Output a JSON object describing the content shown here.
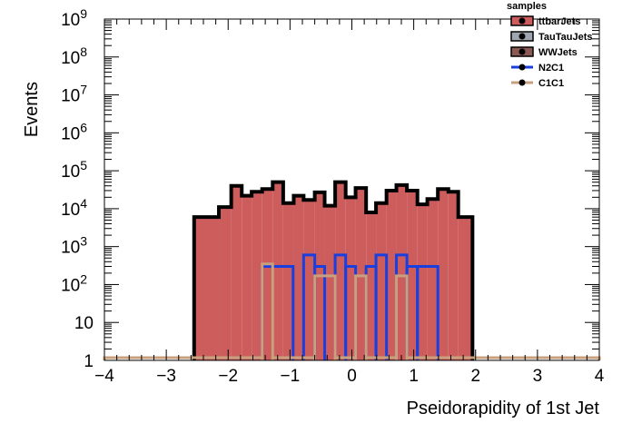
{
  "chart_data": {
    "type": "histogram",
    "title": "",
    "xlabel": "Pseidorapidity of 1st Jet",
    "ylabel": "Events",
    "xlim": [
      -4,
      4
    ],
    "ylim": [
      1,
      1000000000
    ],
    "yscale": "log",
    "grid": false,
    "legend_position": "top-right",
    "legend_title": "samples",
    "x_ticks": [
      {
        "value": -4,
        "label": "−4"
      },
      {
        "value": -3,
        "label": "−3"
      },
      {
        "value": -2,
        "label": "−2"
      },
      {
        "value": -1,
        "label": "−1"
      },
      {
        "value": 0,
        "label": "0"
      },
      {
        "value": 1,
        "label": "1"
      },
      {
        "value": 2,
        "label": "2"
      },
      {
        "value": 3,
        "label": "3"
      },
      {
        "value": 4,
        "label": "4"
      }
    ],
    "y_ticks": [
      {
        "value": 1,
        "base": "1",
        "exp": ""
      },
      {
        "value": 10,
        "base": "10",
        "exp": ""
      },
      {
        "value": 100,
        "base": "10",
        "exp": "2"
      },
      {
        "value": 1000,
        "base": "10",
        "exp": "3"
      },
      {
        "value": 10000,
        "base": "10",
        "exp": "4"
      },
      {
        "value": 100000,
        "base": "10",
        "exp": "5"
      },
      {
        "value": 1000000,
        "base": "10",
        "exp": "6"
      },
      {
        "value": 10000000,
        "base": "10",
        "exp": "7"
      },
      {
        "value": 100000000,
        "base": "10",
        "exp": "8"
      },
      {
        "value": 1000000000,
        "base": "10",
        "exp": "9"
      }
    ],
    "bin_edges": [
      -4.0,
      -3.8,
      -3.6,
      -3.4,
      -3.2,
      -3.0,
      -2.8,
      -2.6,
      -2.4,
      -2.2,
      -2.0,
      -1.8,
      -1.6,
      -1.4,
      -1.2,
      -1.0,
      -0.8,
      -0.6,
      -0.4,
      -0.2,
      0.0,
      0.2,
      0.4,
      0.6,
      0.8,
      1.0,
      1.2,
      1.4,
      1.6,
      1.8,
      2.0,
      2.2,
      2.4,
      2.6,
      2.8,
      3.0,
      3.2,
      3.4,
      3.6,
      3.8,
      4.0
    ],
    "series": [
      {
        "name": "ttbarJets",
        "style": "filled",
        "color": "#cd5c5c",
        "line_color": "#000000",
        "bins": [
          {
            "lo": -2.55,
            "hi": -2.15,
            "v": 6000
          },
          {
            "lo": -2.15,
            "hi": -1.95,
            "v": 11000
          },
          {
            "lo": -1.95,
            "hi": -1.78,
            "v": 40000
          },
          {
            "lo": -1.78,
            "hi": -1.62,
            "v": 22000
          },
          {
            "lo": -1.62,
            "hi": -1.45,
            "v": 28000
          },
          {
            "lo": -1.45,
            "hi": -1.28,
            "v": 33000
          },
          {
            "lo": -1.28,
            "hi": -1.11,
            "v": 50000
          },
          {
            "lo": -1.11,
            "hi": -0.94,
            "v": 14000
          },
          {
            "lo": -0.94,
            "hi": -0.78,
            "v": 22000
          },
          {
            "lo": -0.78,
            "hi": -0.6,
            "v": 17000
          },
          {
            "lo": -0.6,
            "hi": -0.44,
            "v": 27000
          },
          {
            "lo": -0.44,
            "hi": -0.27,
            "v": 12000
          },
          {
            "lo": -0.27,
            "hi": -0.1,
            "v": 50000
          },
          {
            "lo": -0.1,
            "hi": 0.06,
            "v": 20000
          },
          {
            "lo": 0.06,
            "hi": 0.23,
            "v": 35000
          },
          {
            "lo": 0.23,
            "hi": 0.39,
            "v": 8000
          },
          {
            "lo": 0.39,
            "hi": 0.56,
            "v": 14000
          },
          {
            "lo": 0.56,
            "hi": 0.72,
            "v": 30000
          },
          {
            "lo": 0.72,
            "hi": 0.89,
            "v": 42000
          },
          {
            "lo": 0.89,
            "hi": 1.06,
            "v": 30000
          },
          {
            "lo": 1.06,
            "hi": 1.22,
            "v": 13000
          },
          {
            "lo": 1.22,
            "hi": 1.39,
            "v": 18000
          },
          {
            "lo": 1.39,
            "hi": 1.56,
            "v": 33000
          },
          {
            "lo": 1.56,
            "hi": 1.72,
            "v": 28000
          },
          {
            "lo": 1.72,
            "hi": 1.95,
            "v": 6000
          }
        ]
      },
      {
        "name": "TauTauJets",
        "style": "filled",
        "color": "#9fa6b0",
        "line_color": "#000000",
        "bins": []
      },
      {
        "name": "WWJets",
        "style": "filled",
        "color": "#8c5a55",
        "line_color": "#000000",
        "bins": []
      },
      {
        "name": "N2C1",
        "style": "line",
        "color": "#1a3fe0",
        "bins": [
          {
            "lo": -1.45,
            "hi": -0.95,
            "v": 300
          },
          {
            "lo": -0.78,
            "hi": -0.6,
            "v": 600
          },
          {
            "lo": -0.6,
            "hi": -0.44,
            "v": 300
          },
          {
            "lo": -0.27,
            "hi": -0.1,
            "v": 600
          },
          {
            "lo": -0.1,
            "hi": 0.06,
            "v": 300
          },
          {
            "lo": 0.23,
            "hi": 0.39,
            "v": 300
          },
          {
            "lo": 0.39,
            "hi": 0.56,
            "v": 600
          },
          {
            "lo": 0.72,
            "hi": 0.89,
            "v": 600
          },
          {
            "lo": 0.89,
            "hi": 1.06,
            "v": 300
          },
          {
            "lo": 1.06,
            "hi": 1.39,
            "v": 300
          }
        ]
      },
      {
        "name": "C1C1",
        "style": "line",
        "color": "#c8a07e",
        "bins": [
          {
            "lo": -4.0,
            "hi": -1.45,
            "v": 1.18
          },
          {
            "lo": -1.45,
            "hi": -1.28,
            "v": 350
          },
          {
            "lo": -1.28,
            "hi": -0.6,
            "v": 1.18
          },
          {
            "lo": -0.6,
            "hi": -0.27,
            "v": 170
          },
          {
            "lo": -0.27,
            "hi": 0.06,
            "v": 1.18
          },
          {
            "lo": 0.06,
            "hi": 0.23,
            "v": 170
          },
          {
            "lo": 0.23,
            "hi": 0.72,
            "v": 1.18
          },
          {
            "lo": 0.72,
            "hi": 0.89,
            "v": 170
          },
          {
            "lo": 0.89,
            "hi": 4.0,
            "v": 1.18
          }
        ]
      }
    ]
  }
}
